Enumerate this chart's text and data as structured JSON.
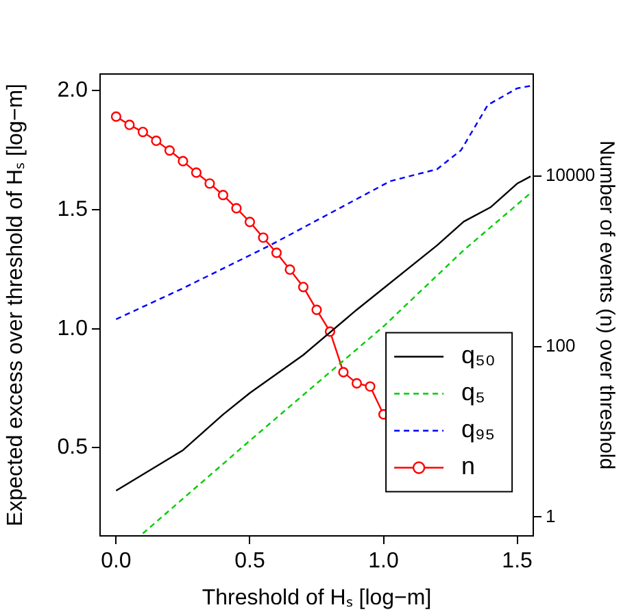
{
  "chart_data": {
    "type": "line",
    "xlabel": "Threshold of Hₛ [log−m]",
    "ylabel": "Expected excess over threshold of Hₛ [log−m]",
    "y2label": "Number of events (n) over threshold",
    "xlim": [
      -0.06,
      1.56
    ],
    "xticks": [
      {
        "value": 0,
        "label": "0.0"
      },
      0.5,
      {
        "value": 1,
        "label": "1.0"
      },
      1.5
    ],
    "ylim": [
      0.13,
      2.07
    ],
    "yticks": [
      0.5,
      {
        "value": 1,
        "label": "1.0"
      },
      1.5,
      {
        "value": 2,
        "label": "2.0"
      }
    ],
    "y2lim": [
      0.64,
      158000
    ],
    "y2ticks": [
      1,
      100,
      10000
    ],
    "log": "y2",
    "grid": false,
    "legend": "right",
    "series": [
      {
        "name": "q₅₀",
        "color": "#000000",
        "line_style": "solid",
        "marker": "none",
        "x": [
          0,
          0.25,
          0.4,
          0.5,
          0.7,
          0.9,
          1.2,
          1.3,
          1.4,
          1.5,
          1.55
        ],
        "values": [
          0.32,
          0.49,
          0.64,
          0.73,
          0.89,
          1.08,
          1.35,
          1.45,
          1.51,
          1.61,
          1.64
        ]
      },
      {
        "name": "q₅",
        "color": "#00cd00",
        "line_style": "dashed",
        "marker": "none",
        "x": [
          0.1,
          0.5,
          1.0,
          1.3,
          1.55
        ],
        "values": [
          0.14,
          0.53,
          1.01,
          1.33,
          1.57
        ]
      },
      {
        "name": "q₉₅",
        "color": "#0000ff",
        "line_style": "dashed",
        "marker": "none",
        "x": [
          0,
          0.25,
          0.575,
          0.825,
          1.025,
          1.2,
          1.29,
          1.39,
          1.5,
          1.55
        ],
        "values": [
          1.04,
          1.17,
          1.35,
          1.5,
          1.62,
          1.67,
          1.75,
          1.94,
          2.01,
          2.02
        ]
      },
      {
        "name": "n",
        "color": "#ff0000",
        "line_style": "solid",
        "marker": "circle",
        "axis": "y2",
        "x": [
          0,
          0.05,
          0.1,
          0.15,
          0.2,
          0.25,
          0.3,
          0.35,
          0.4,
          0.45,
          0.5,
          0.55,
          0.6,
          0.65,
          0.7,
          0.75,
          0.8,
          0.85,
          0.9,
          0.95,
          1.0
        ],
        "values": [
          50000,
          40000,
          33000,
          26000,
          20000,
          15000,
          11000,
          8200,
          6000,
          4200,
          2900,
          1900,
          1260,
          800,
          500,
          270,
          150,
          50,
          37,
          34,
          16
        ]
      }
    ]
  }
}
